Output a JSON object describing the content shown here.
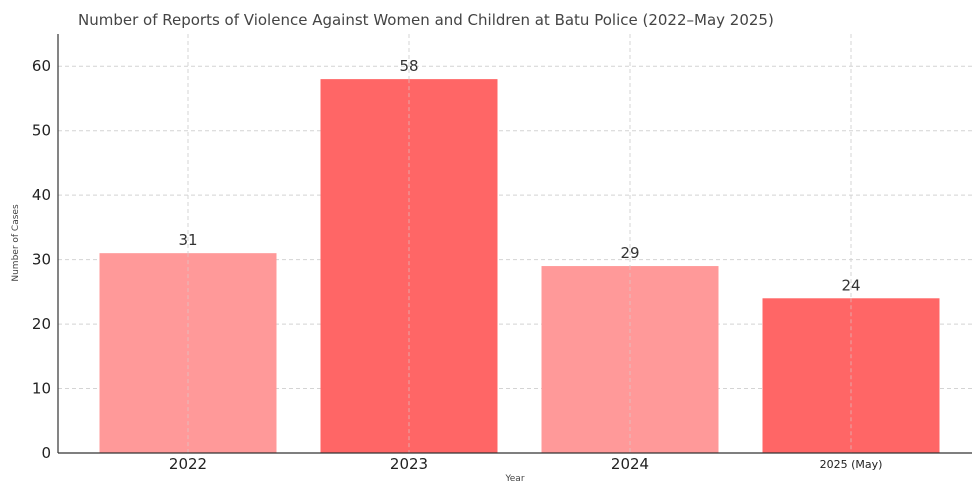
{
  "chart_data": {
    "type": "bar",
    "title": "Number of Reports of Violence Against Women and Children at Batu Police (2022–May 2025)",
    "xlabel": "Year",
    "ylabel": "Number of Cases",
    "categories": [
      "2022",
      "2023",
      "2024",
      "2025 (May)"
    ],
    "values": [
      31,
      58,
      29,
      24
    ],
    "bar_colors": [
      "#ff9999",
      "#ff6666",
      "#ff9999",
      "#ff6666"
    ],
    "ylim": [
      0,
      65
    ],
    "yticks": [
      "0",
      "10",
      "20",
      "30",
      "40",
      "50",
      "60"
    ],
    "data_labels": [
      "31",
      "58",
      "29",
      "24"
    ],
    "grid": true
  }
}
